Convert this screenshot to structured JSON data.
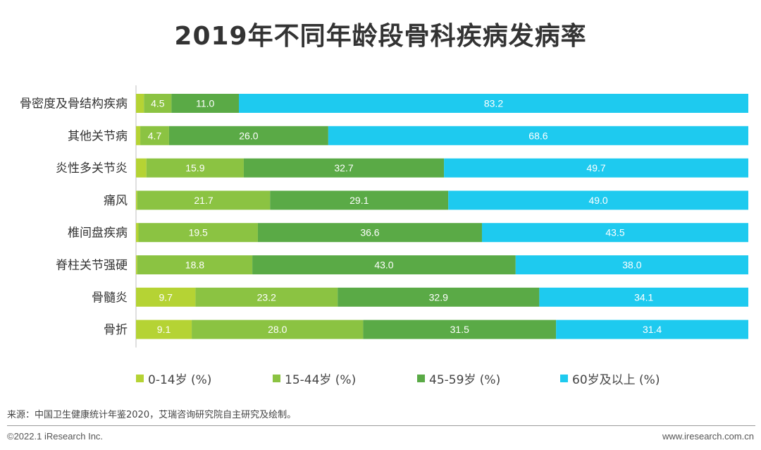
{
  "chart_data": {
    "type": "bar",
    "orientation": "horizontal-stacked-100",
    "title": "2019年不同年龄段骨科疾病发病率",
    "categories": [
      "骨密度及骨结构疾病",
      "其他关节病",
      "炎性多关节炎",
      "痛风",
      "椎间盘疾病",
      "脊柱关节强硬",
      "骨髓炎",
      "骨折"
    ],
    "series": [
      {
        "name": "0-14岁 (%)",
        "color": "#b5d334",
        "values": [
          1.3,
          0.7,
          1.7,
          0.2,
          0.4,
          0.2,
          9.7,
          9.1
        ],
        "labels": [
          "",
          "",
          "",
          "",
          "",
          "",
          "9.7",
          "9.1"
        ]
      },
      {
        "name": "15-44岁 (%)",
        "color": "#8bc342",
        "values": [
          4.5,
          4.7,
          15.9,
          21.7,
          19.5,
          18.8,
          23.2,
          28.0
        ],
        "labels": [
          "4.5",
          "4.7",
          "15.9",
          "21.7",
          "19.5",
          "18.8",
          "23.2",
          "28.0"
        ]
      },
      {
        "name": "45-59岁 (%)",
        "color": "#5aaa46",
        "values": [
          11.0,
          26.0,
          32.7,
          29.1,
          36.6,
          43.0,
          32.9,
          31.5
        ],
        "labels": [
          "11.0",
          "26.0",
          "32.7",
          "29.1",
          "36.6",
          "43.0",
          "32.9",
          "31.5"
        ]
      },
      {
        "name": "60岁及以上 (%)",
        "color": "#1ecaef",
        "values": [
          83.2,
          68.6,
          49.7,
          49.0,
          43.5,
          38.0,
          34.1,
          31.4
        ],
        "labels": [
          "83.2",
          "68.6",
          "49.7",
          "49.0",
          "43.5",
          "38.0",
          "34.1",
          "31.4"
        ]
      }
    ],
    "xlim": [
      0,
      100
    ],
    "grid": false,
    "legend_position": "bottom"
  },
  "source": "来源：中国卫生健康统计年鉴2020，艾瑞咨询研究院自主研究及绘制。",
  "footer": {
    "copyright": "©2022.1 iResearch Inc.",
    "website": "www.iresearch.com.cn"
  }
}
